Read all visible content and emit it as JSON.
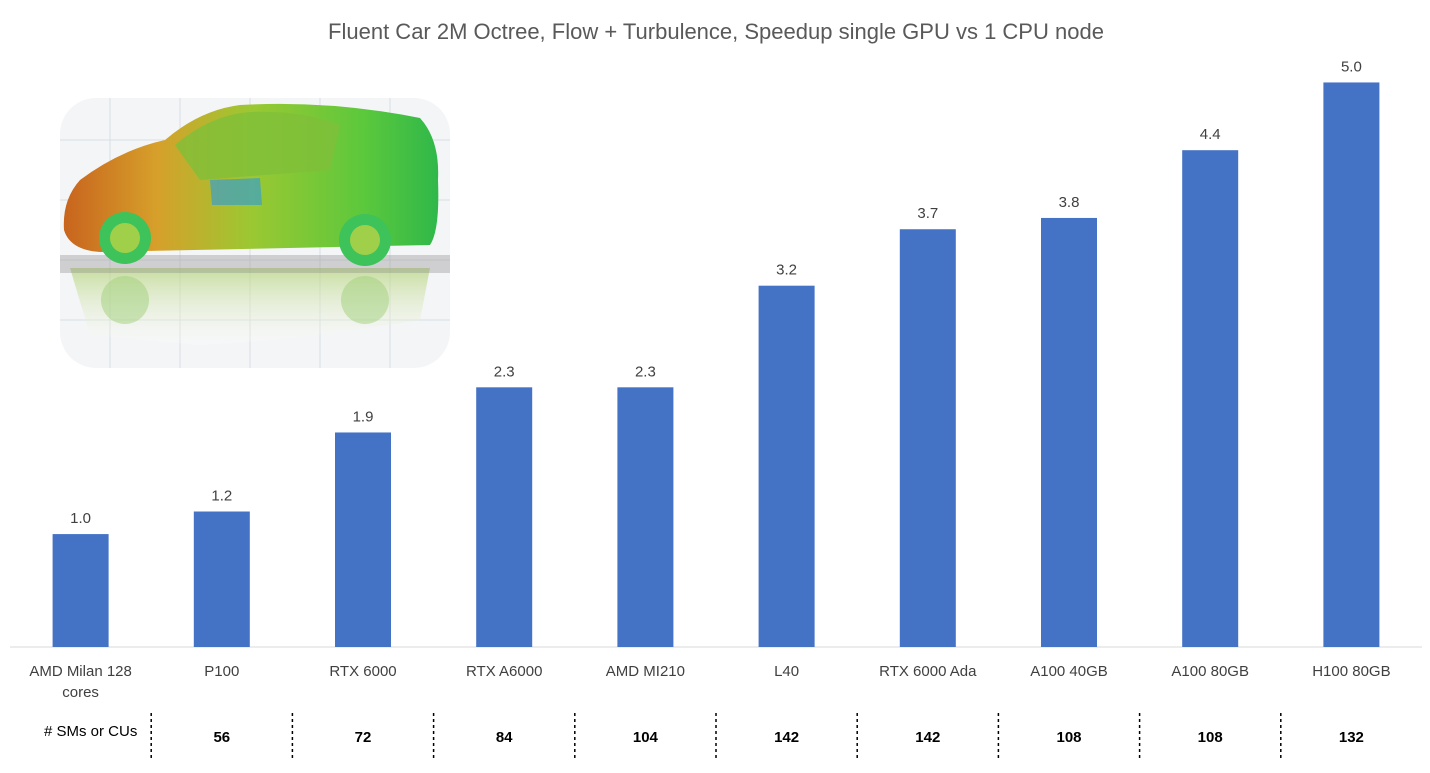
{
  "chart_data": {
    "type": "bar",
    "title": "Fluent Car 2M Octree, Flow + Turbulence, Speedup single GPU vs 1 CPU node",
    "xlabel": "",
    "ylabel": "",
    "ylim": [
      0,
      5.5
    ],
    "grid": false,
    "categories": [
      [
        "AMD Milan 128",
        "cores"
      ],
      [
        "P100"
      ],
      [
        "RTX 6000"
      ],
      [
        "RTX A6000"
      ],
      [
        "AMD MI210"
      ],
      [
        "L40"
      ],
      [
        "RTX 6000 Ada"
      ],
      [
        "A100 40GB"
      ],
      [
        "A100 80GB"
      ],
      [
        "H100 80GB"
      ]
    ],
    "values": [
      1.0,
      1.2,
      1.9,
      2.3,
      2.3,
      3.2,
      3.7,
      3.8,
      4.4,
      5.0
    ],
    "value_labels": [
      "1.0",
      "1.2",
      "1.9",
      "2.3",
      "2.3",
      "3.2",
      "3.7",
      "3.8",
      "4.4",
      "5.0"
    ],
    "bar_color": "#4472C4",
    "table": {
      "row_label": "# SMs or CUs",
      "values": [
        "56",
        "72",
        "84",
        "104",
        "142",
        "142",
        "108",
        "108",
        "132"
      ]
    },
    "inset_image": "car-cfd-render"
  }
}
